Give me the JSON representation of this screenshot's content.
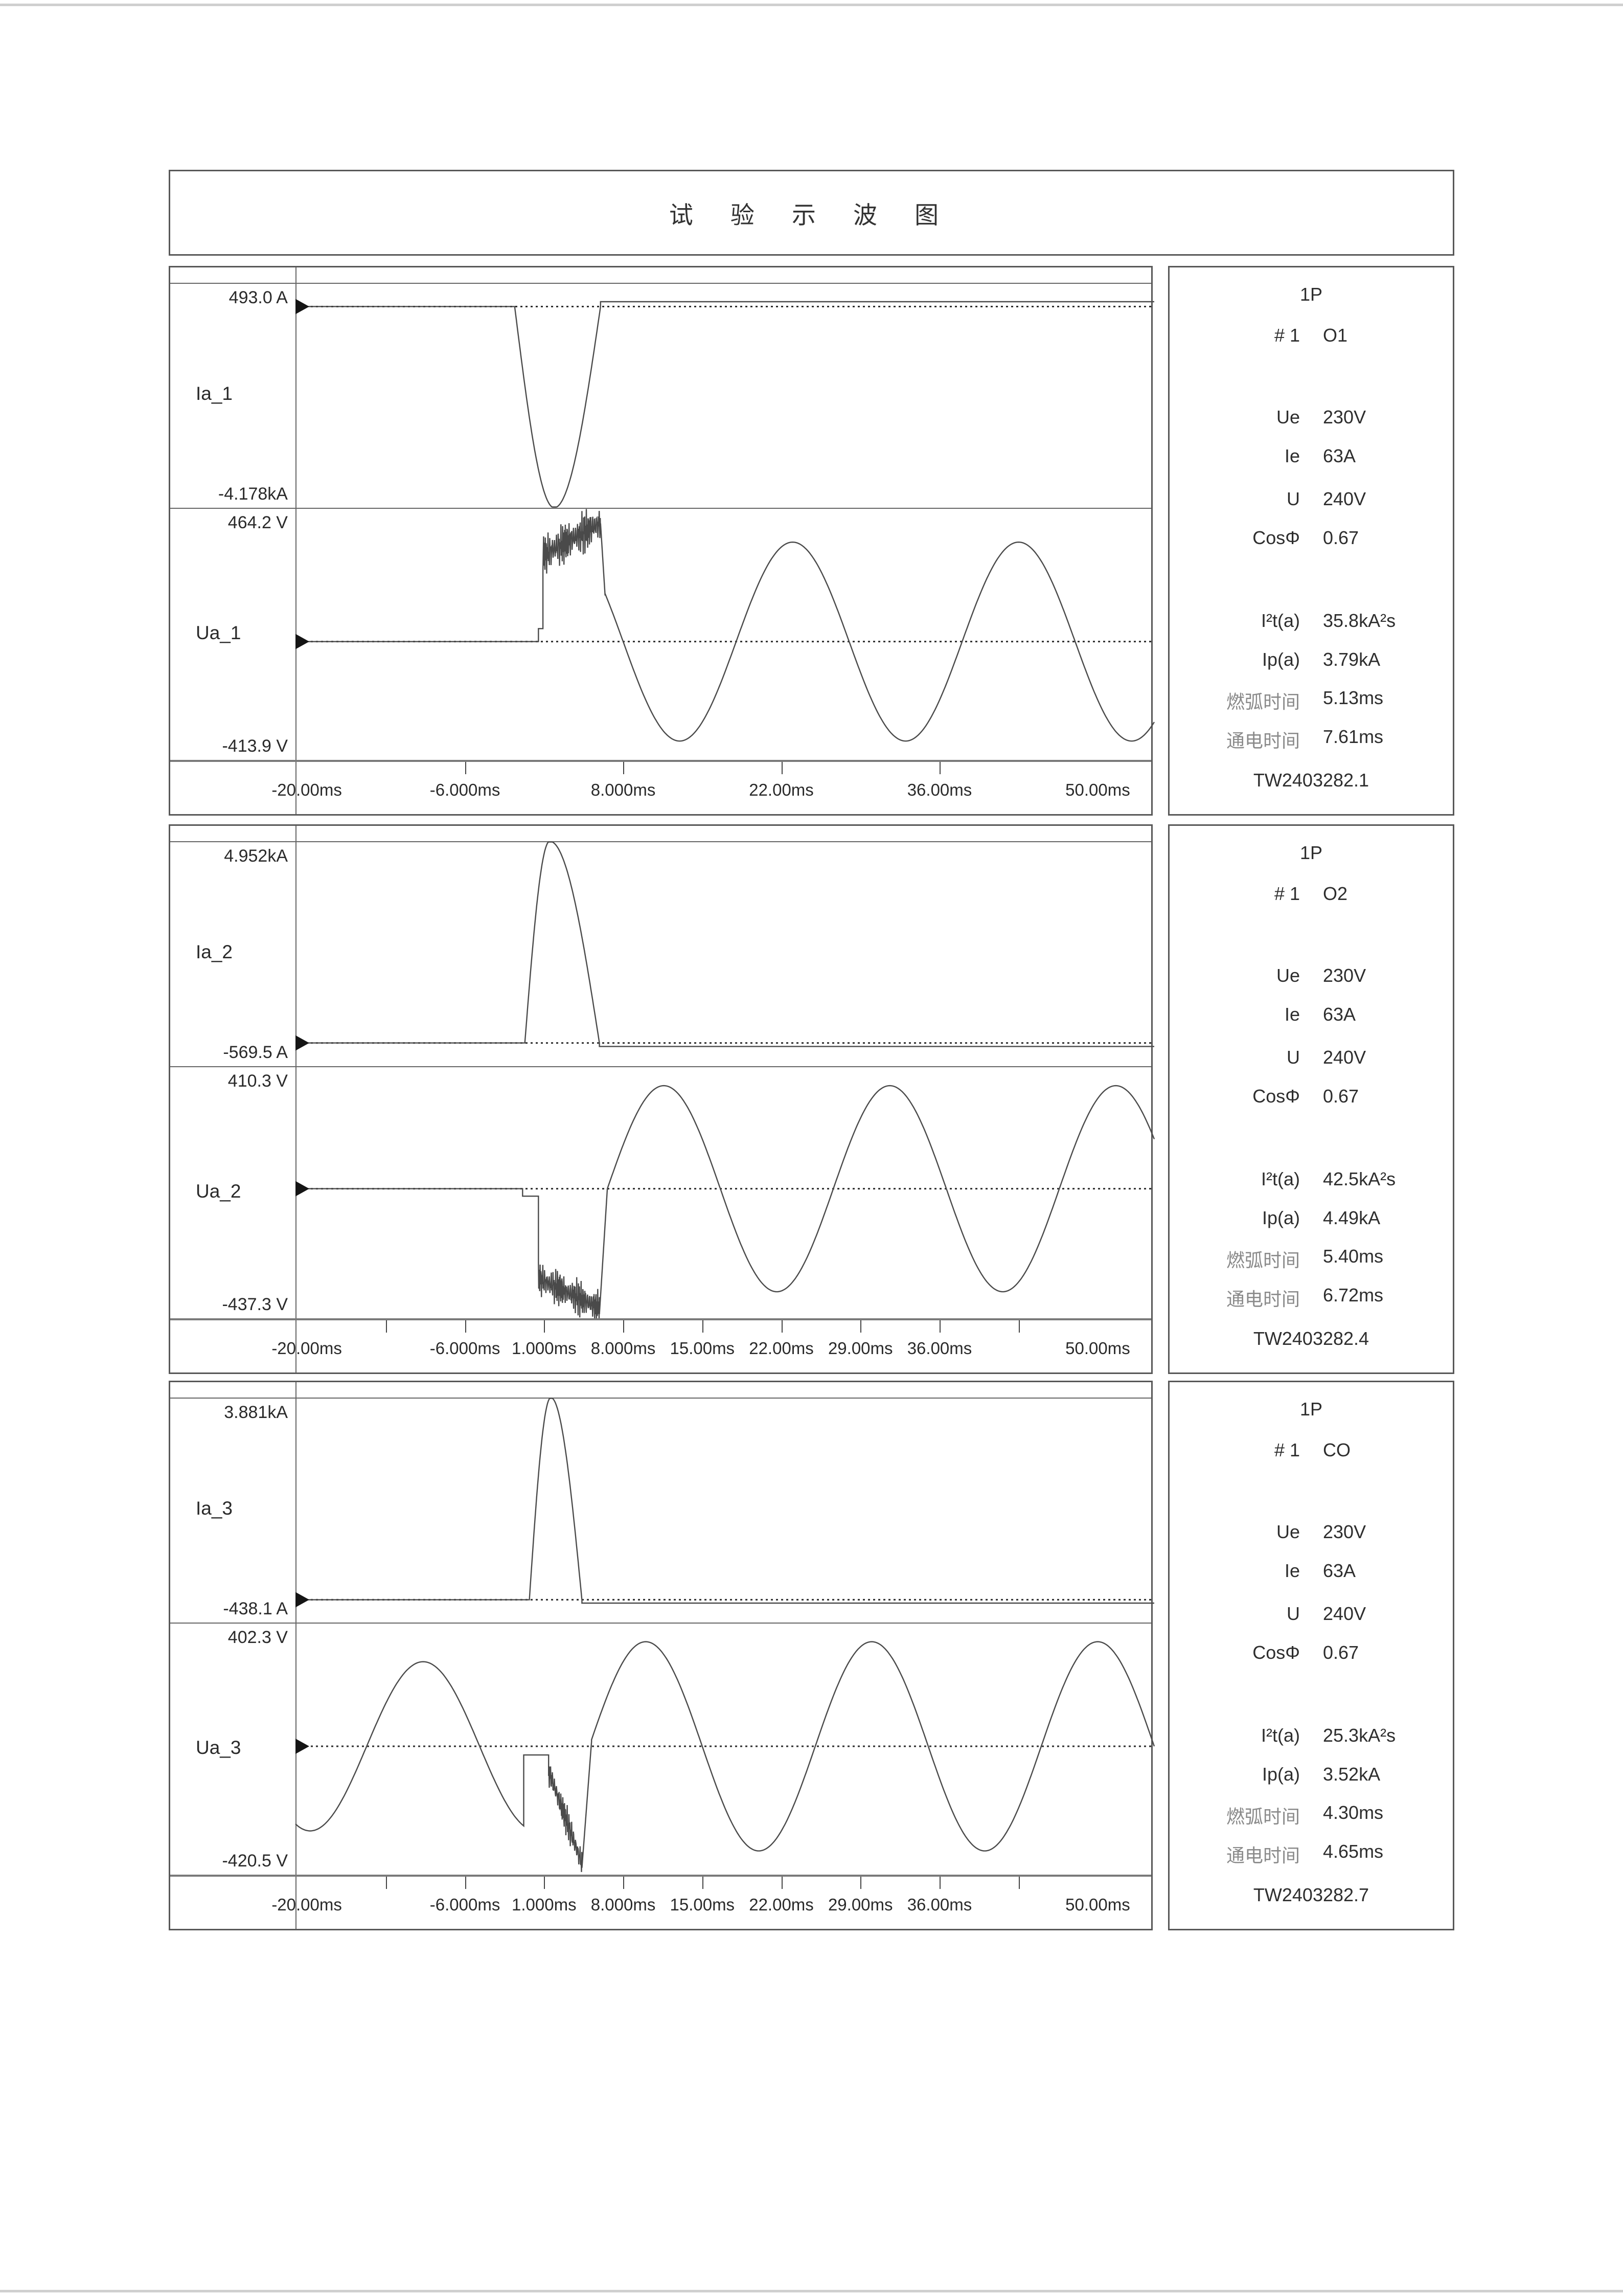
{
  "title": "试 验 示 波 图",
  "chart_data": {
    "type": "line",
    "x_unit": "ms",
    "time_domain": [
      -21,
      55
    ],
    "panels": [
      {
        "current": {
          "name": "Ia_1",
          "max_label": "493.0 A",
          "min_label": "-4.178kA",
          "max": 493.0,
          "min": -4178,
          "segments": [
            {
              "type": "flat",
              "t0": -21,
              "t1": -1.6,
              "v": 0
            },
            {
              "type": "spike",
              "t0": -1.6,
              "tp": 1.9,
              "t1": 6.0,
              "amp": -4178
            },
            {
              "type": "flat",
              "t0": 6.0,
              "t1": 55,
              "v": 100
            }
          ]
        },
        "voltage": {
          "name": "Ua_1",
          "max_label": "464.2 V",
          "min_label": "-413.9 V",
          "max": 464.2,
          "min": -413.9,
          "segments": [
            {
              "type": "flat",
              "t0": -21,
              "t1": 0.5,
              "v": 0
            },
            {
              "type": "flat",
              "t0": 0.5,
              "t1": 0.9,
              "v": 45
            },
            {
              "type": "arc",
              "t0": 0.9,
              "t1": 6.0,
              "v0": 300,
              "v1": 410,
              "jitter": 85,
              "seed": 3,
              "clampMin": 190,
              "clampMax": 460
            },
            {
              "type": "line",
              "t0": 6.0,
              "t1": 6.4,
              "v0": 410,
              "v1": 160
            },
            {
              "type": "sine",
              "t0": 6.4,
              "t1": 55,
              "amp": -345,
              "period": 20,
              "tzero": 8
            }
          ]
        },
        "axis": {
          "ticks": [
            -6,
            8,
            22,
            36
          ],
          "labels": [
            {
              "t": -20,
              "text": "-20.00ms"
            },
            {
              "t": -6,
              "text": "-6.000ms"
            },
            {
              "t": 8,
              "text": "8.000ms"
            },
            {
              "t": 22,
              "text": "22.00ms"
            },
            {
              "t": 36,
              "text": "36.00ms"
            },
            {
              "t": 50,
              "text": "50.00ms"
            }
          ]
        },
        "info": {
          "phase": "1P",
          "shot": "# 1",
          "operation": "O1",
          "params": [
            [
              "Ue",
              "230V"
            ],
            [
              "Ie",
              "63A"
            ],
            [
              "U",
              "240V"
            ],
            [
              "CosΦ",
              "0.67"
            ]
          ],
          "results": [
            [
              "I²t(a)",
              "35.8kA²s"
            ],
            [
              "Ip(a)",
              "3.79kA"
            ]
          ],
          "times": [
            [
              "燃弧时间",
              "5.13ms"
            ],
            [
              "通电时间",
              "7.61ms"
            ]
          ],
          "record": "TW2403282.1"
        }
      },
      {
        "current": {
          "name": "Ia_2",
          "max_label": "4.952kA",
          "min_label": "-569.5 A",
          "max": 4952,
          "min": -569.5,
          "segments": [
            {
              "type": "flat",
              "t0": -21,
              "t1": -0.7,
              "v": 0
            },
            {
              "type": "spike",
              "t0": -0.7,
              "tp": 1.5,
              "t1": 5.9,
              "amp": 4952
            },
            {
              "type": "flat",
              "t0": 5.9,
              "t1": 55,
              "v": -85
            }
          ]
        },
        "voltage": {
          "name": "Ua_2",
          "max_label": "410.3 V",
          "min_label": "-437.3 V",
          "max": 410.3,
          "min": -437.3,
          "segments": [
            {
              "type": "flat",
              "t0": -21,
              "t1": -0.9,
              "v": 0
            },
            {
              "type": "flat",
              "t0": -0.9,
              "t1": 0.5,
              "v": -25
            },
            {
              "type": "arc",
              "t0": 0.5,
              "t1": 5.9,
              "v0": -300,
              "v1": -400,
              "jitter": 70,
              "seed": 7,
              "clampMin": -434,
              "clampMax": -190
            },
            {
              "type": "line",
              "t0": 5.9,
              "t1": 6.6,
              "v0": -420,
              "v1": 0
            },
            {
              "type": "sine",
              "t0": 6.6,
              "t1": 55,
              "amp": 345,
              "period": 20,
              "tzero": 6.6
            }
          ]
        },
        "axis": {
          "ticks": [
            -13,
            -6,
            1,
            8,
            15,
            22,
            29,
            36,
            43
          ],
          "labels": [
            {
              "t": -20,
              "text": "-20.00ms"
            },
            {
              "t": -6,
              "text": "-6.000ms"
            },
            {
              "t": 1,
              "text": "1.000ms"
            },
            {
              "t": 8,
              "text": "8.000ms"
            },
            {
              "t": 15,
              "text": "15.00ms"
            },
            {
              "t": 22,
              "text": "22.00ms"
            },
            {
              "t": 29,
              "text": "29.00ms"
            },
            {
              "t": 36,
              "text": "36.00ms"
            },
            {
              "t": 50,
              "text": "50.00ms"
            }
          ]
        },
        "info": {
          "phase": "1P",
          "shot": "# 1",
          "operation": "O2",
          "params": [
            [
              "Ue",
              "230V"
            ],
            [
              "Ie",
              "63A"
            ],
            [
              "U",
              "240V"
            ],
            [
              "CosΦ",
              "0.67"
            ]
          ],
          "results": [
            [
              "I²t(a)",
              "42.5kA²s"
            ],
            [
              "Ip(a)",
              "4.49kA"
            ]
          ],
          "times": [
            [
              "燃弧时间",
              "5.40ms"
            ],
            [
              "通电时间",
              "6.72ms"
            ]
          ],
          "record": "TW2403282.4"
        }
      },
      {
        "current": {
          "name": "Ia_3",
          "max_label": "3.881kA",
          "min_label": "-438.1 A",
          "max": 3881,
          "min": -438.1,
          "segments": [
            {
              "type": "flat",
              "t0": -21,
              "t1": -0.3,
              "v": 0
            },
            {
              "type": "spike",
              "t0": -0.3,
              "tp": 1.6,
              "t1": 4.35,
              "amp": 3881
            },
            {
              "type": "flat",
              "t0": 4.35,
              "t1": 55,
              "v": -65
            }
          ]
        },
        "voltage": {
          "name": "Ua_3",
          "max_label": "402.3 V",
          "min_label": "-420.5 V",
          "max": 402.3,
          "min": -420.5,
          "segments": [
            {
              "type": "sine",
              "t0": -21,
              "t1": -0.8,
              "amp": 275,
              "period": 20,
              "tzero": -14.7
            },
            {
              "type": "flat",
              "t0": -0.8,
              "t1": 1.4,
              "v": -28
            },
            {
              "type": "arc",
              "t0": 1.4,
              "t1": 4.35,
              "v0": -80,
              "v1": -380,
              "jitter": 60,
              "seed": 11,
              "clampMin": -416,
              "clampMax": -20
            },
            {
              "type": "line",
              "t0": 4.35,
              "t1": 5.2,
              "v0": -395,
              "v1": 15
            },
            {
              "type": "sine",
              "t0": 5.2,
              "t1": 55,
              "amp": 340,
              "period": 20,
              "tzero": 5.0
            }
          ]
        },
        "axis": {
          "ticks": [
            -13,
            -6,
            1,
            8,
            15,
            22,
            29,
            36,
            43
          ],
          "labels": [
            {
              "t": -20,
              "text": "-20.00ms"
            },
            {
              "t": -6,
              "text": "-6.000ms"
            },
            {
              "t": 1,
              "text": "1.000ms"
            },
            {
              "t": 8,
              "text": "8.000ms"
            },
            {
              "t": 15,
              "text": "15.00ms"
            },
            {
              "t": 22,
              "text": "22.00ms"
            },
            {
              "t": 29,
              "text": "29.00ms"
            },
            {
              "t": 36,
              "text": "36.00ms"
            },
            {
              "t": 50,
              "text": "50.00ms"
            }
          ]
        },
        "info": {
          "phase": "1P",
          "shot": "# 1",
          "operation": "CO",
          "params": [
            [
              "Ue",
              "230V"
            ],
            [
              "Ie",
              "63A"
            ],
            [
              "U",
              "240V"
            ],
            [
              "CosΦ",
              "0.67"
            ]
          ],
          "results": [
            [
              "I²t(a)",
              "25.3kA²s"
            ],
            [
              "Ip(a)",
              "3.52kA"
            ]
          ],
          "times": [
            [
              "燃弧时间",
              "4.30ms"
            ],
            [
              "通电时间",
              "4.65ms"
            ]
          ],
          "record": "TW2403282.7"
        }
      }
    ]
  }
}
